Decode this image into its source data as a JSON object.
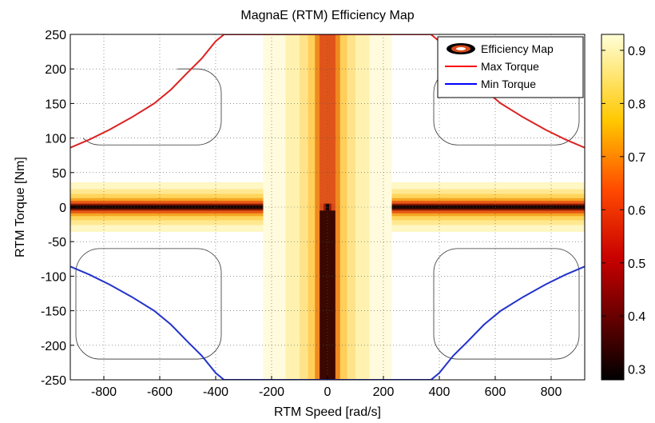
{
  "chart_data": {
    "type": "heatmap",
    "title": "MagnaE (RTM) Efficiency Map",
    "xlabel": "RTM Speed [rad/s]",
    "ylabel": "RTM Torque [Nm]",
    "xlim": [
      -920,
      920
    ],
    "ylim": [
      -250,
      250
    ],
    "xticks": [
      -800,
      -600,
      -400,
      -200,
      0,
      200,
      400,
      600,
      800
    ],
    "yticks": [
      250,
      200,
      150,
      100,
      50,
      0,
      -50,
      -100,
      -150,
      -200,
      -250
    ],
    "grid": true,
    "colormap": "hot",
    "colorbar": {
      "range": [
        0.28,
        0.93
      ],
      "ticks": [
        "0.9",
        "0.8",
        "0.7",
        "0.6",
        "0.5",
        "0.4",
        "0.3"
      ],
      "tick_values": [
        0.9,
        0.8,
        0.7,
        0.6,
        0.5,
        0.4,
        0.3
      ]
    },
    "legend": {
      "position": "top-right",
      "entries": [
        {
          "label": "Efficiency Map",
          "type": "contour",
          "color": "#d84a1b"
        },
        {
          "label": "Max Torque",
          "type": "line",
          "color": "#ff0000"
        },
        {
          "label": "Min Torque",
          "type": "line",
          "color": "#0000ff"
        }
      ]
    },
    "series": [
      {
        "name": "Max Torque",
        "color": "#dd2222",
        "x": [
          -920,
          -850,
          -780,
          -700,
          -620,
          -560,
          -500,
          -450,
          -400,
          -370,
          370,
          400,
          450,
          500,
          560,
          620,
          700,
          780,
          850,
          920
        ],
        "y": [
          86,
          98,
          112,
          130,
          150,
          170,
          195,
          215,
          240,
          250,
          250,
          240,
          215,
          195,
          170,
          150,
          130,
          112,
          98,
          86
        ]
      },
      {
        "name": "Min Torque",
        "color": "#2233cc",
        "x": [
          -920,
          -850,
          -780,
          -700,
          -620,
          -560,
          -500,
          -450,
          -400,
          -370,
          370,
          400,
          450,
          500,
          560,
          620,
          700,
          780,
          850,
          920
        ],
        "y": [
          -86,
          -98,
          -112,
          -130,
          -150,
          -170,
          -195,
          -215,
          -240,
          -250,
          -250,
          -240,
          -215,
          -195,
          -170,
          -150,
          -130,
          -112,
          -98,
          -86
        ]
      }
    ]
  }
}
